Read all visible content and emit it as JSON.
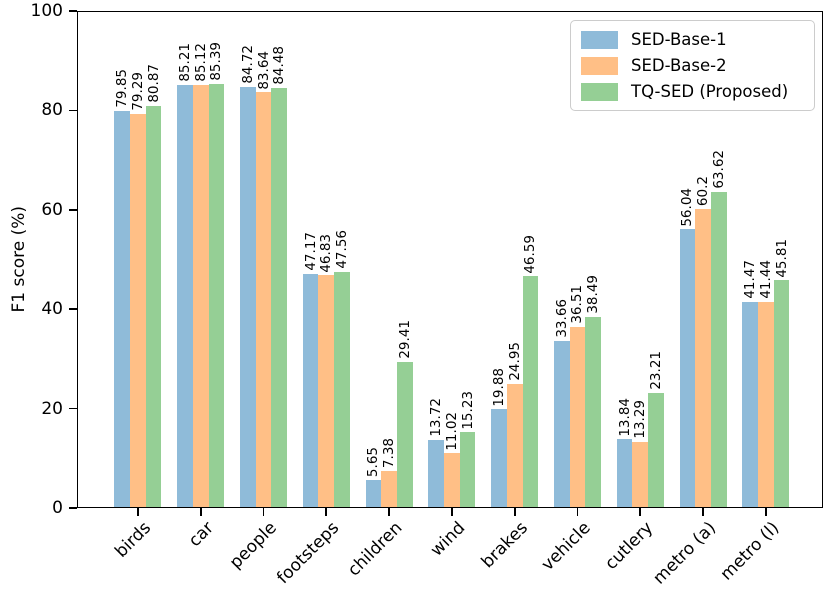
{
  "chart_data": {
    "type": "bar",
    "title": "",
    "xlabel": "",
    "ylabel": "F1 score (%)",
    "ylim": [
      0,
      100
    ],
    "yticks": [
      0,
      20,
      40,
      60,
      80,
      100
    ],
    "grid": false,
    "legend_position": "upper right",
    "bar_value_labels_rotation": 90,
    "x_tick_rotation": 45,
    "categories": [
      "birds",
      "car",
      "people",
      "footsteps",
      "children",
      "wind",
      "brakes",
      "vehicle",
      "cutlery",
      "metro (a)",
      "metro (l)"
    ],
    "series": [
      {
        "name": "SED-Base-1",
        "color": "#8FBBD9",
        "values": [
          79.85,
          85.21,
          84.72,
          47.17,
          5.65,
          13.72,
          19.88,
          33.66,
          13.84,
          56.04,
          41.47
        ],
        "labels": [
          "79.85",
          "85.21",
          "84.72",
          "47.17",
          "5.65",
          "13.72",
          "19.88",
          "33.66",
          "13.84",
          "56.04",
          "41.47"
        ]
      },
      {
        "name": "SED-Base-2",
        "color": "#FFBF86",
        "values": [
          79.29,
          85.12,
          83.64,
          46.83,
          7.38,
          11.02,
          24.95,
          36.51,
          13.29,
          60.2,
          41.44
        ],
        "labels": [
          "79.29",
          "85.12",
          "83.64",
          "46.83",
          "7.38",
          "11.02",
          "24.95",
          "36.51",
          "13.29",
          "60.2",
          "41.44"
        ]
      },
      {
        "name": "TQ-SED (Proposed)",
        "color": "#95CF95",
        "values": [
          80.87,
          85.39,
          84.48,
          47.56,
          29.41,
          15.23,
          46.59,
          38.49,
          23.21,
          63.62,
          45.81
        ],
        "labels": [
          "80.87",
          "85.39",
          "84.48",
          "47.56",
          "29.41",
          "15.23",
          "46.59",
          "38.49",
          "23.21",
          "63.62",
          "45.81"
        ]
      }
    ]
  }
}
